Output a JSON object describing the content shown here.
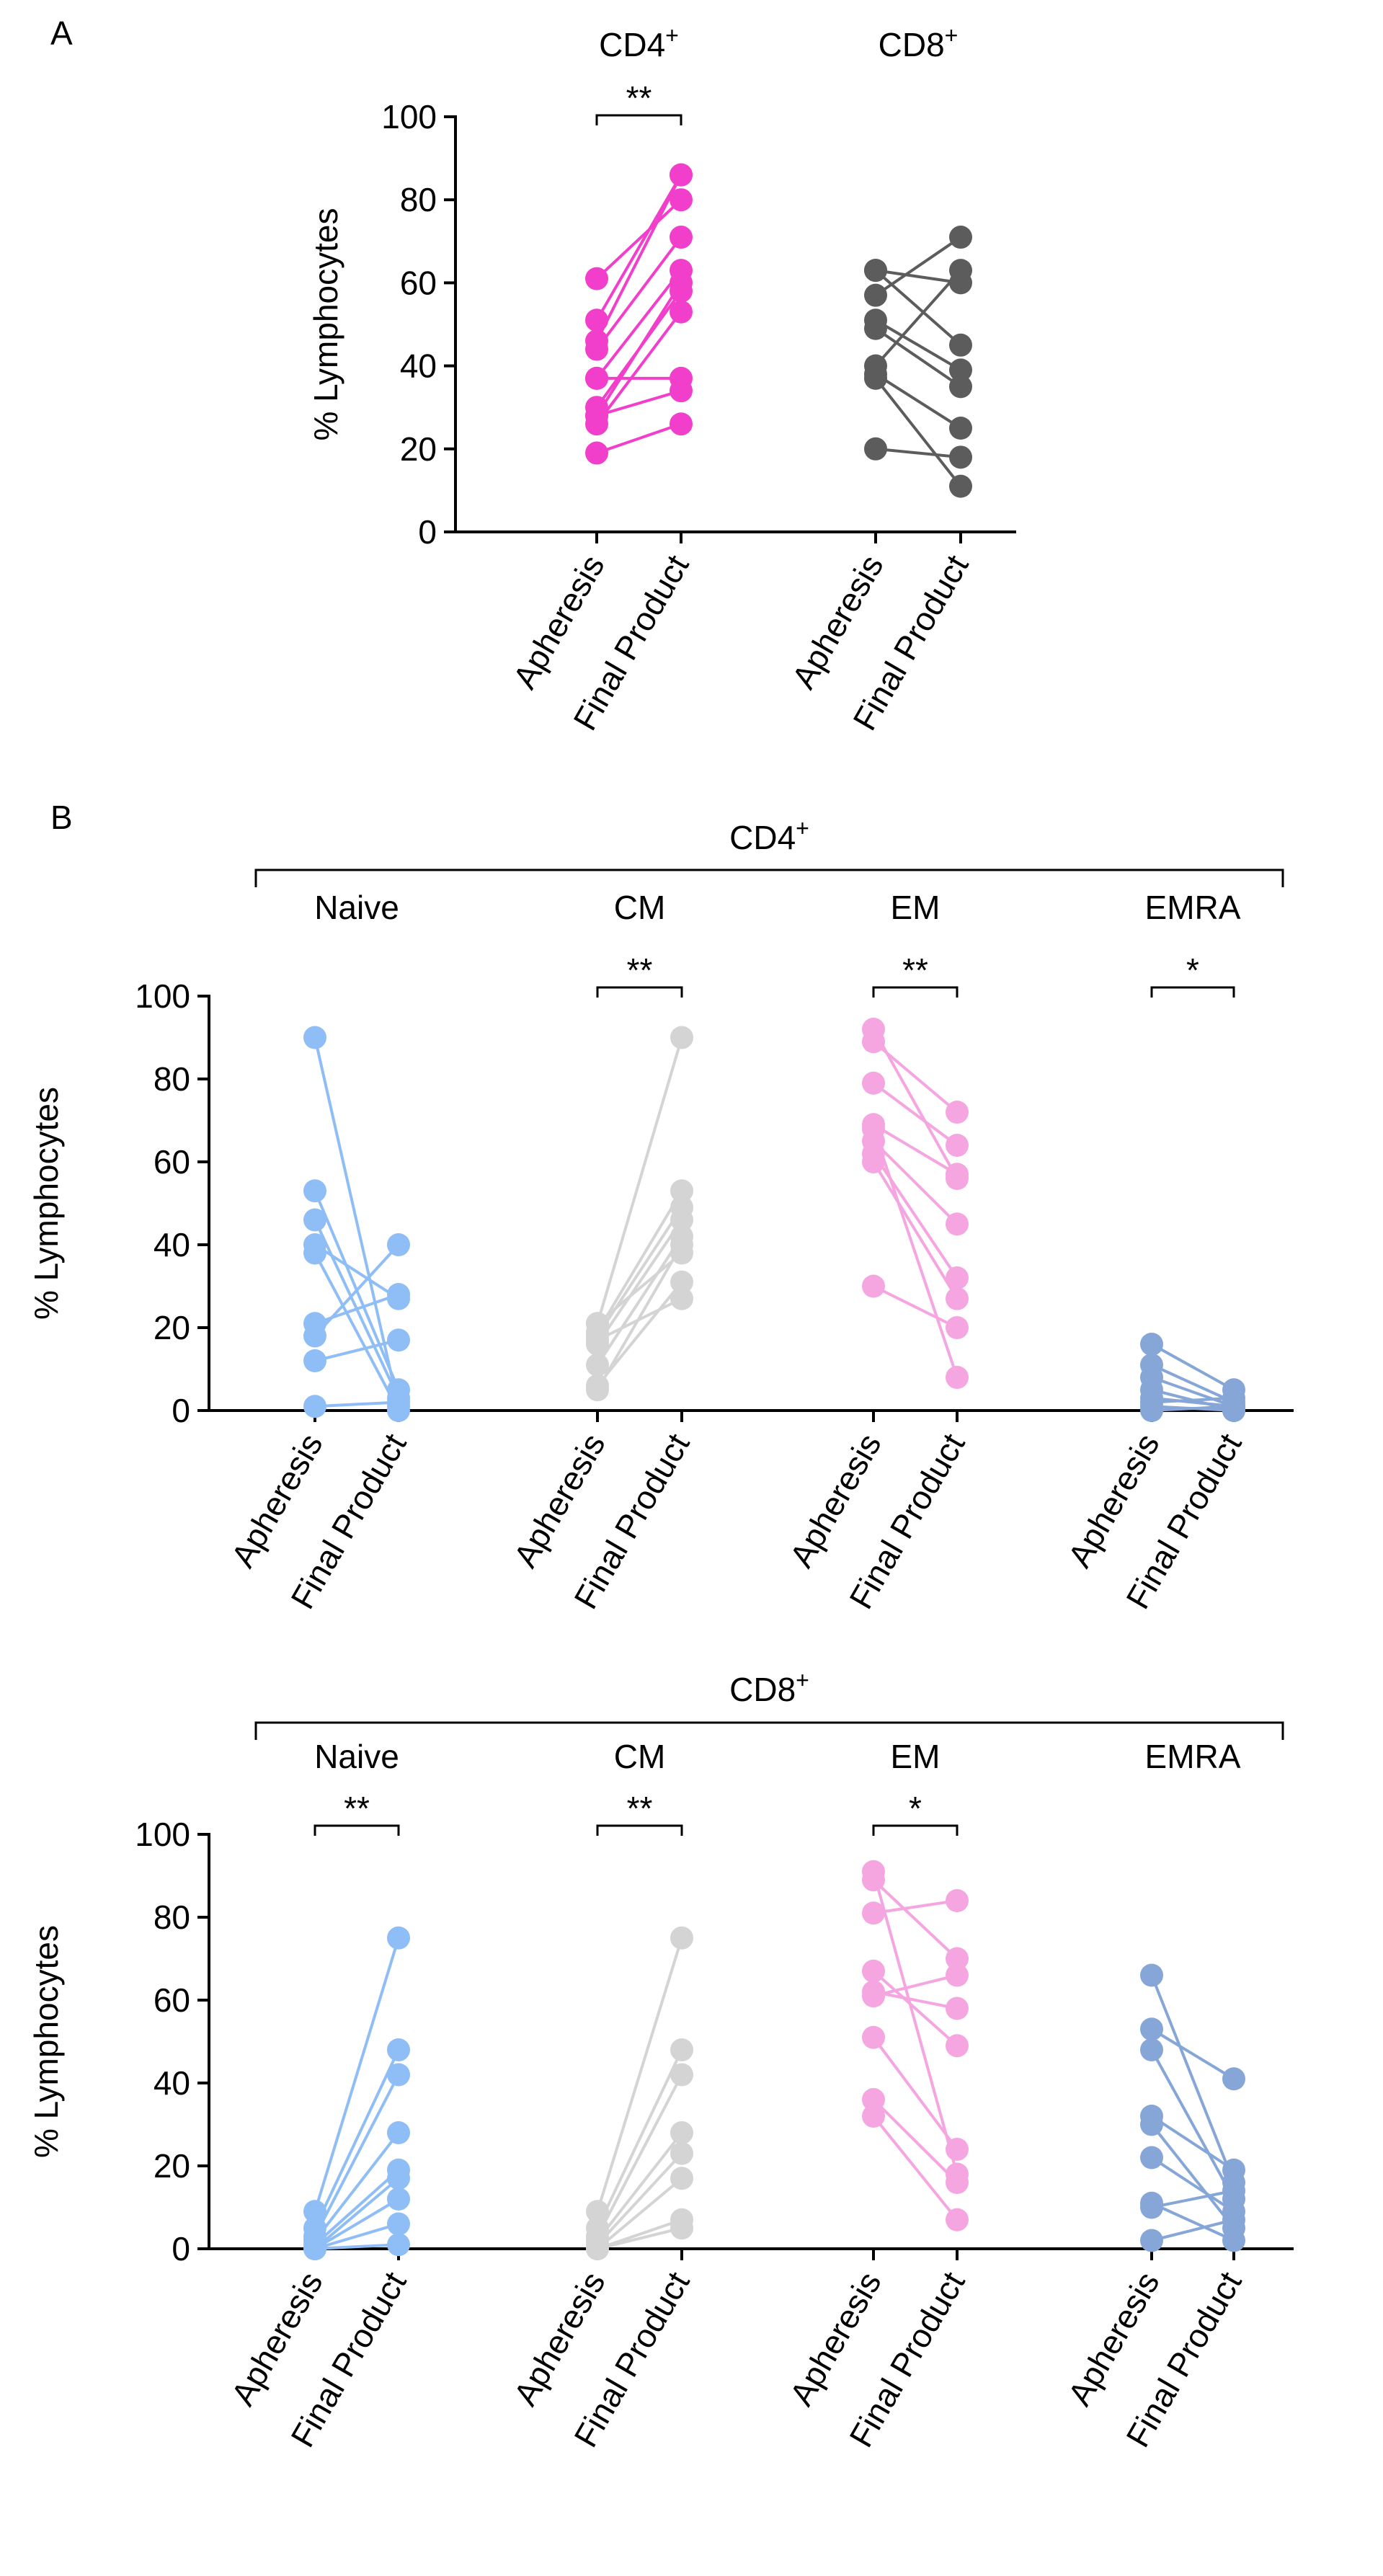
{
  "chart_data": [
    {
      "type": "scatter",
      "panel": "A",
      "ylabel": "% Lymphocytes",
      "ylim": [
        0,
        100
      ],
      "yticks": [
        0,
        20,
        40,
        60,
        80,
        100
      ],
      "categories": [
        "Apheresis",
        "Final Product"
      ],
      "groups": [
        {
          "title": "CD4",
          "title_sup": "+",
          "color": "#F23FCB",
          "significance": "**",
          "pairs": [
            [
              61,
              80
            ],
            [
              51,
              86
            ],
            [
              46,
              86
            ],
            [
              44,
              71
            ],
            [
              37,
              63
            ],
            [
              37,
              37
            ],
            [
              30,
              58
            ],
            [
              28,
              60
            ],
            [
              28,
              34
            ],
            [
              26,
              53
            ],
            [
              19,
              26
            ]
          ]
        },
        {
          "title": "CD8",
          "title_sup": "+",
          "color": "#5C5C5C",
          "significance": "",
          "pairs": [
            [
              63,
              60
            ],
            [
              63,
              45
            ],
            [
              57,
              71
            ],
            [
              51,
              39
            ],
            [
              49,
              35
            ],
            [
              40,
              63
            ],
            [
              38,
              25
            ],
            [
              37,
              11
            ],
            [
              20,
              18
            ]
          ]
        }
      ]
    },
    {
      "type": "scatter",
      "panel": "B",
      "group_title": "CD4",
      "group_title_sup": "+",
      "ylabel": "% Lymphocytes",
      "ylim": [
        0,
        100
      ],
      "yticks": [
        0,
        20,
        40,
        60,
        80,
        100
      ],
      "categories": [
        "Apheresis",
        "Final Product"
      ],
      "subsets": [
        {
          "name": "Naive",
          "color": "#8FBDF5",
          "significance": "",
          "pairs": [
            [
              90,
              1
            ],
            [
              53,
              5
            ],
            [
              46,
              3
            ],
            [
              40,
              27
            ],
            [
              38,
              0
            ],
            [
              21,
              28
            ],
            [
              18,
              40
            ],
            [
              12,
              17
            ],
            [
              1,
              2
            ]
          ]
        },
        {
          "name": "CM",
          "color": "#D4D4D4",
          "significance": "**",
          "pairs": [
            [
              21,
              90
            ],
            [
              19,
              53
            ],
            [
              18,
              49
            ],
            [
              16,
              46
            ],
            [
              11,
              42
            ],
            [
              6,
              31
            ],
            [
              21,
              38
            ],
            [
              17,
              27
            ],
            [
              5,
              40
            ]
          ]
        },
        {
          "name": "EM",
          "color": "#F5A5E0",
          "significance": "**",
          "pairs": [
            [
              92,
              56
            ],
            [
              89,
              72
            ],
            [
              79,
              64
            ],
            [
              69,
              57
            ],
            [
              65,
              45
            ],
            [
              62,
              32
            ],
            [
              60,
              27
            ],
            [
              30,
              20
            ],
            [
              68,
              8
            ]
          ]
        },
        {
          "name": "EMRA",
          "color": "#85A6D6",
          "significance": "*",
          "pairs": [
            [
              16,
              5
            ],
            [
              11,
              2
            ],
            [
              8,
              1
            ],
            [
              5,
              0
            ],
            [
              3,
              1
            ],
            [
              2,
              3
            ],
            [
              1,
              0
            ],
            [
              0,
              1
            ]
          ]
        }
      ]
    },
    {
      "type": "scatter",
      "panel": "B",
      "group_title": "CD8",
      "group_title_sup": "+",
      "ylabel": "% Lymphocytes",
      "ylim": [
        0,
        100
      ],
      "yticks": [
        0,
        20,
        40,
        60,
        80,
        100
      ],
      "categories": [
        "Apheresis",
        "Final Product"
      ],
      "subsets": [
        {
          "name": "Naive",
          "color": "#8FBDF5",
          "significance": "**",
          "pairs": [
            [
              9,
              75
            ],
            [
              5,
              48
            ],
            [
              3,
              42
            ],
            [
              2,
              28
            ],
            [
              1,
              19
            ],
            [
              0,
              17
            ],
            [
              0,
              12
            ],
            [
              0,
              6
            ],
            [
              0,
              1
            ]
          ]
        },
        {
          "name": "CM",
          "color": "#D4D4D4",
          "significance": "**",
          "pairs": [
            [
              9,
              75
            ],
            [
              5,
              48
            ],
            [
              3,
              42
            ],
            [
              2,
              28
            ],
            [
              1,
              23
            ],
            [
              0,
              17
            ],
            [
              0,
              7
            ],
            [
              0,
              5
            ]
          ]
        },
        {
          "name": "EM",
          "color": "#F5A5E0",
          "significance": "*",
          "pairs": [
            [
              91,
              18
            ],
            [
              89,
              70
            ],
            [
              81,
              84
            ],
            [
              67,
              49
            ],
            [
              62,
              58
            ],
            [
              61,
              66
            ],
            [
              51,
              24
            ],
            [
              36,
              16
            ],
            [
              32,
              7
            ]
          ]
        },
        {
          "name": "EMRA",
          "color": "#85A6D6",
          "significance": "",
          "pairs": [
            [
              66,
              16
            ],
            [
              53,
              41
            ],
            [
              48,
              12
            ],
            [
              32,
              19
            ],
            [
              30,
              5
            ],
            [
              22,
              9
            ],
            [
              11,
              2
            ],
            [
              10,
              14
            ],
            [
              2,
              7
            ]
          ]
        }
      ]
    }
  ]
}
